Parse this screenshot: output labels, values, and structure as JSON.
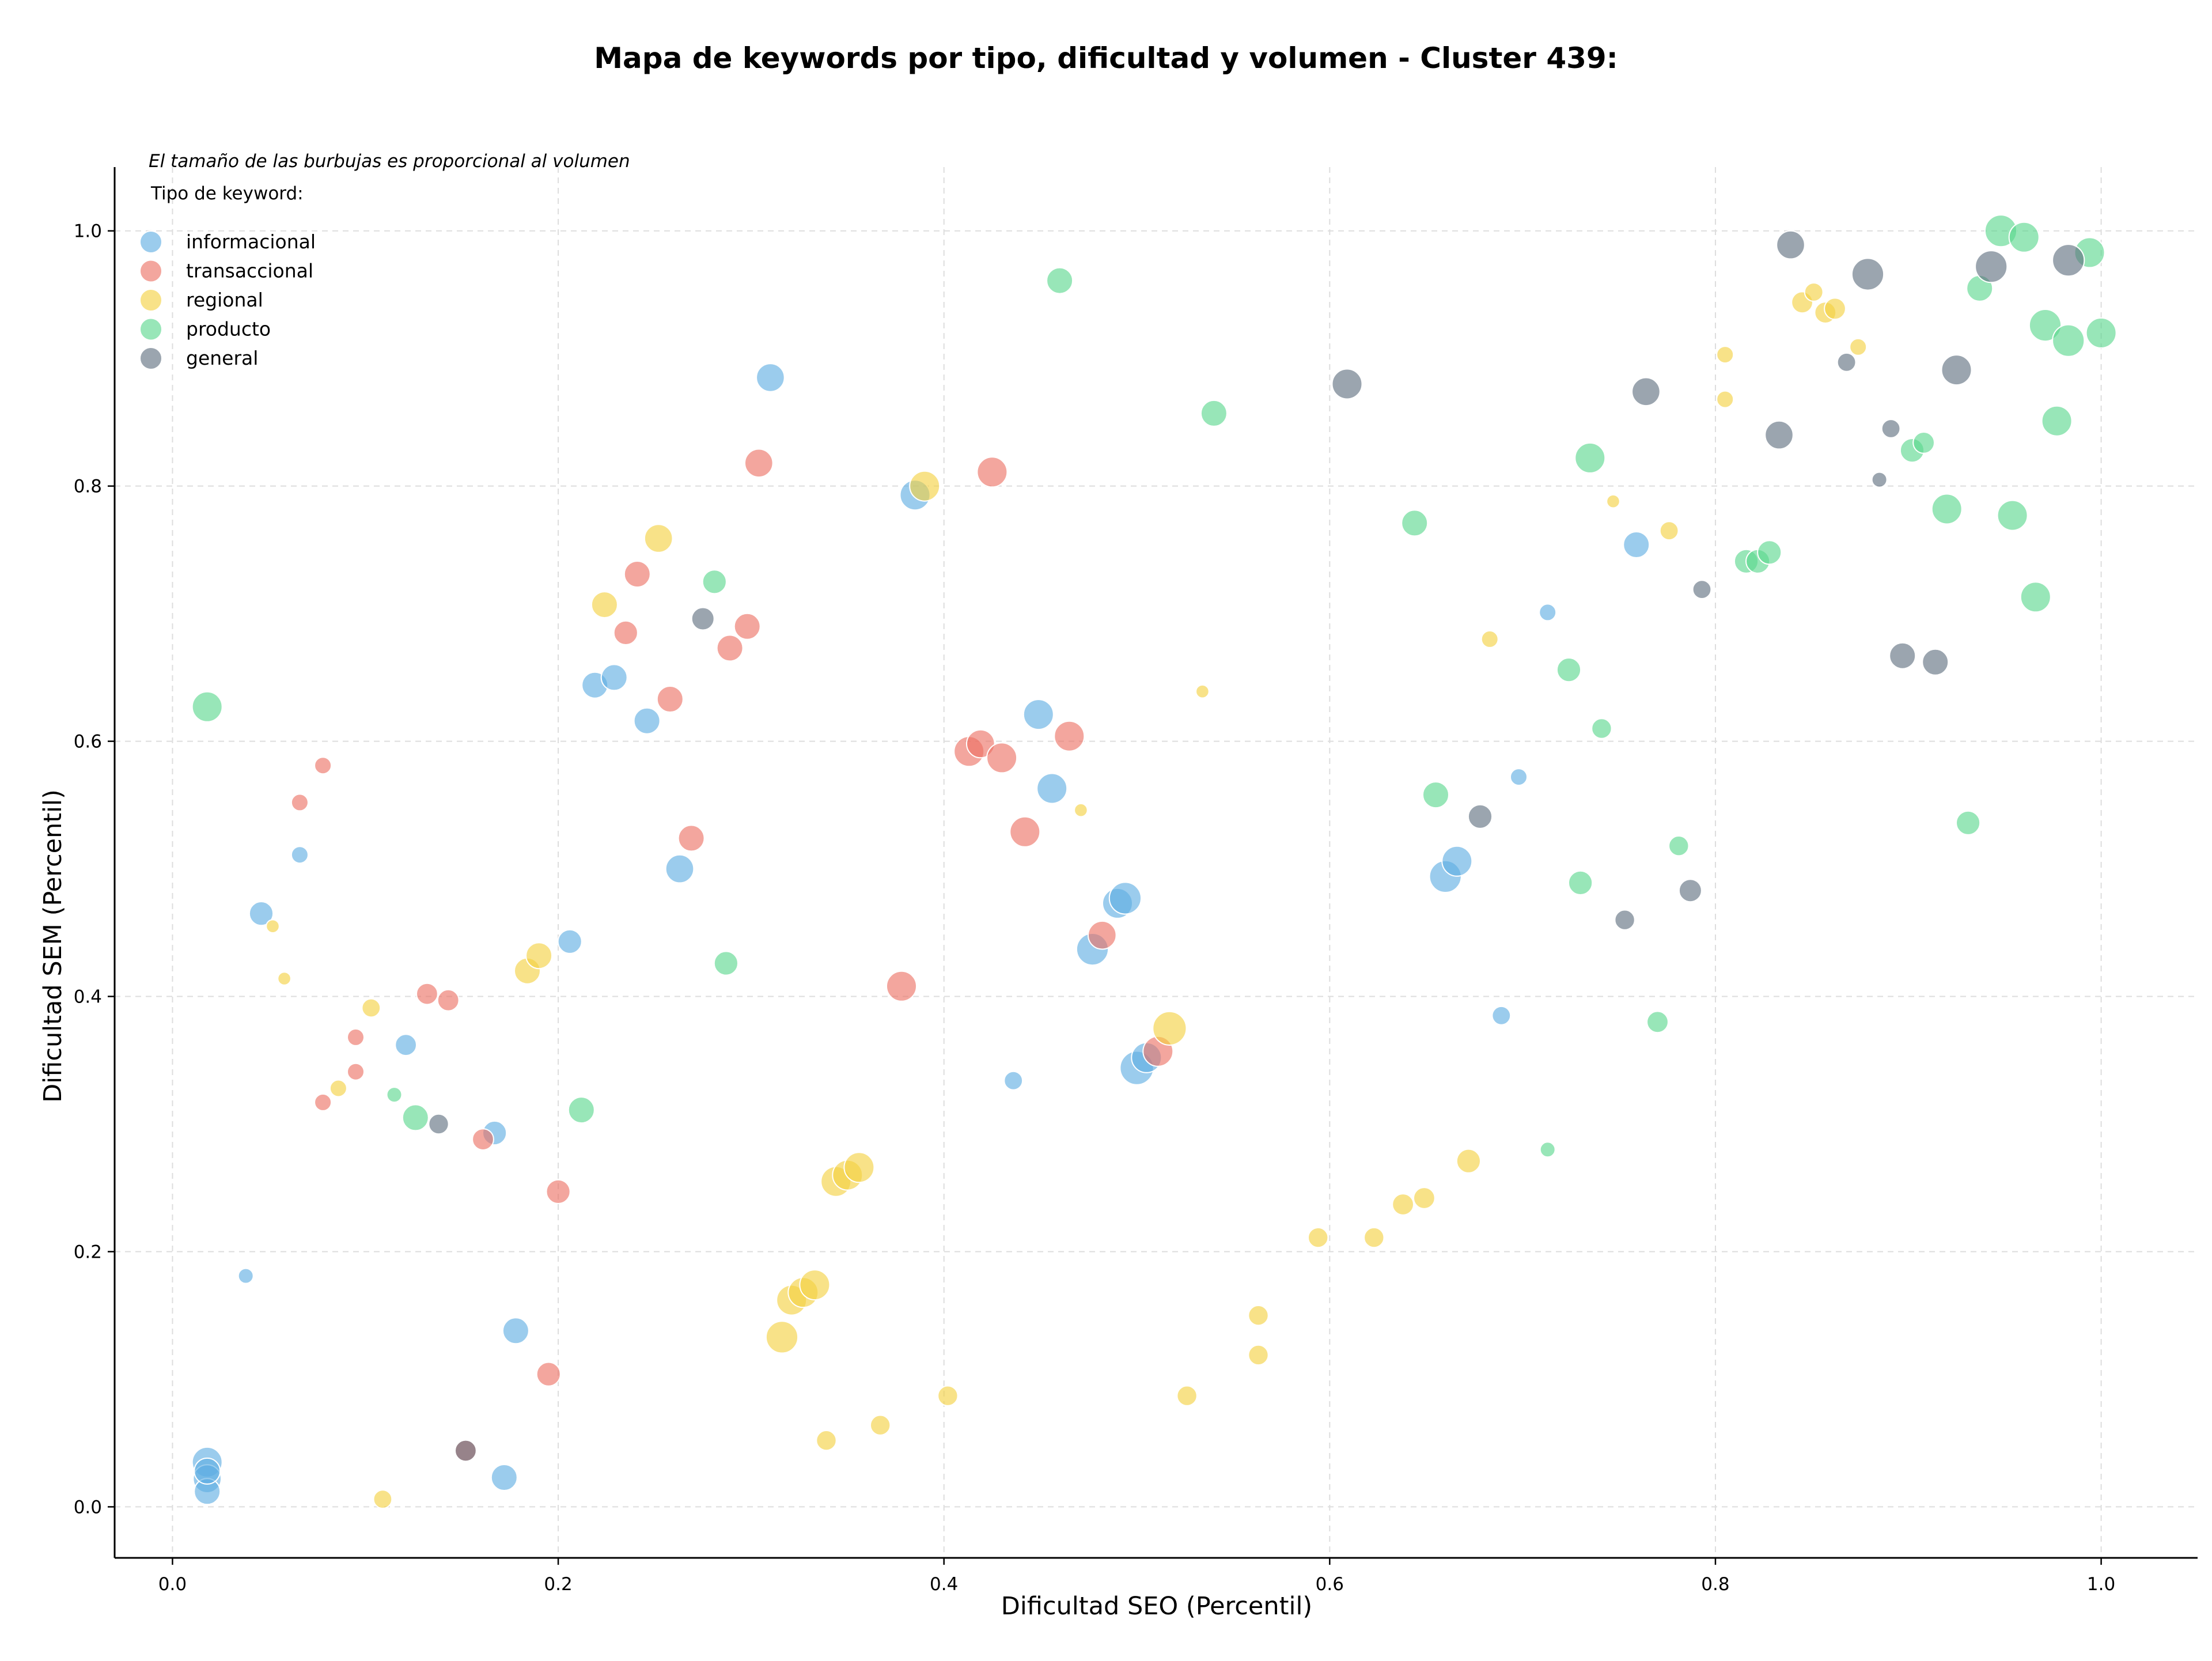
{
  "chart_data": {
    "type": "scatter",
    "title": "Mapa de keywords por tipo, dificultad y volumen - Cluster 439:",
    "xlabel": "Dificultad SEO (Percentil)",
    "ylabel": "Dificultad SEM (Percentil)",
    "xlim": [
      -0.03,
      1.05
    ],
    "ylim": [
      -0.04,
      1.05
    ],
    "x_ticks": [
      "0.0",
      "0.2",
      "0.4",
      "0.6",
      "0.8",
      "1.0"
    ],
    "y_ticks": [
      "0.0",
      "0.2",
      "0.4",
      "0.6",
      "0.8",
      "1.0"
    ],
    "grid": true,
    "note": "El tamaño de las burbujas es proporcional al volumen",
    "legend_title": "Tipo de keyword:",
    "legend_position": "top-left",
    "series": [
      {
        "name": "informacional",
        "color": "#5DADE2",
        "points": [
          {
            "x": 0.018,
            "y": 0.035,
            "size": 8
          },
          {
            "x": 0.018,
            "y": 0.022,
            "size": 7
          },
          {
            "x": 0.018,
            "y": 0.012,
            "size": 6
          },
          {
            "x": 0.018,
            "y": 0.028,
            "size": 6
          },
          {
            "x": 0.038,
            "y": 0.181,
            "size": 2
          },
          {
            "x": 0.046,
            "y": 0.465,
            "size": 5
          },
          {
            "x": 0.066,
            "y": 0.511,
            "size": 2.5
          },
          {
            "x": 0.121,
            "y": 0.362,
            "size": 4
          },
          {
            "x": 0.167,
            "y": 0.293,
            "size": 5
          },
          {
            "x": 0.172,
            "y": 0.023,
            "size": 6
          },
          {
            "x": 0.178,
            "y": 0.138,
            "size": 6
          },
          {
            "x": 0.206,
            "y": 0.443,
            "size": 5
          },
          {
            "x": 0.219,
            "y": 0.644,
            "size": 6
          },
          {
            "x": 0.229,
            "y": 0.65,
            "size": 6
          },
          {
            "x": 0.246,
            "y": 0.616,
            "size": 6
          },
          {
            "x": 0.263,
            "y": 0.5,
            "size": 7
          },
          {
            "x": 0.31,
            "y": 0.885,
            "size": 7
          },
          {
            "x": 0.385,
            "y": 0.793,
            "size": 8
          },
          {
            "x": 0.436,
            "y": 0.334,
            "size": 3
          },
          {
            "x": 0.449,
            "y": 0.621,
            "size": 8
          },
          {
            "x": 0.456,
            "y": 0.563,
            "size": 8
          },
          {
            "x": 0.477,
            "y": 0.437,
            "size": 9
          },
          {
            "x": 0.49,
            "y": 0.473,
            "size": 8
          },
          {
            "x": 0.494,
            "y": 0.477,
            "size": 9
          },
          {
            "x": 0.5,
            "y": 0.344,
            "size": 10
          },
          {
            "x": 0.505,
            "y": 0.352,
            "size": 8
          },
          {
            "x": 0.66,
            "y": 0.494,
            "size": 9
          },
          {
            "x": 0.666,
            "y": 0.506,
            "size": 8
          },
          {
            "x": 0.689,
            "y": 0.385,
            "size": 3
          },
          {
            "x": 0.698,
            "y": 0.572,
            "size": 2.5
          },
          {
            "x": 0.713,
            "y": 0.701,
            "size": 2.5
          },
          {
            "x": 0.759,
            "y": 0.754,
            "size": 6
          }
        ]
      },
      {
        "name": "transaccional",
        "color": "#EC7063",
        "points": [
          {
            "x": 0.078,
            "y": 0.581,
            "size": 2.5
          },
          {
            "x": 0.066,
            "y": 0.552,
            "size": 2.5
          },
          {
            "x": 0.095,
            "y": 0.368,
            "size": 2.5
          },
          {
            "x": 0.095,
            "y": 0.341,
            "size": 2.5
          },
          {
            "x": 0.078,
            "y": 0.317,
            "size": 2.5
          },
          {
            "x": 0.132,
            "y": 0.402,
            "size": 4
          },
          {
            "x": 0.143,
            "y": 0.397,
            "size": 4
          },
          {
            "x": 0.161,
            "y": 0.288,
            "size": 4
          },
          {
            "x": 0.152,
            "y": 0.044,
            "size": 4
          },
          {
            "x": 0.195,
            "y": 0.104,
            "size": 5
          },
          {
            "x": 0.2,
            "y": 0.247,
            "size": 5
          },
          {
            "x": 0.241,
            "y": 0.731,
            "size": 6
          },
          {
            "x": 0.235,
            "y": 0.685,
            "size": 5
          },
          {
            "x": 0.258,
            "y": 0.633,
            "size": 6
          },
          {
            "x": 0.269,
            "y": 0.524,
            "size": 6
          },
          {
            "x": 0.289,
            "y": 0.673,
            "size": 6
          },
          {
            "x": 0.298,
            "y": 0.69,
            "size": 6
          },
          {
            "x": 0.304,
            "y": 0.818,
            "size": 7
          },
          {
            "x": 0.378,
            "y": 0.408,
            "size": 8
          },
          {
            "x": 0.413,
            "y": 0.592,
            "size": 8
          },
          {
            "x": 0.419,
            "y": 0.598,
            "size": 7
          },
          {
            "x": 0.425,
            "y": 0.811,
            "size": 8
          },
          {
            "x": 0.43,
            "y": 0.587,
            "size": 8
          },
          {
            "x": 0.442,
            "y": 0.529,
            "size": 8
          },
          {
            "x": 0.465,
            "y": 0.604,
            "size": 8
          },
          {
            "x": 0.482,
            "y": 0.448,
            "size": 7
          },
          {
            "x": 0.511,
            "y": 0.357,
            "size": 8
          }
        ]
      },
      {
        "name": "regional",
        "color": "#F4D03F",
        "points": [
          {
            "x": 0.052,
            "y": 0.455,
            "size": 1.5
          },
          {
            "x": 0.058,
            "y": 0.414,
            "size": 1.5
          },
          {
            "x": 0.103,
            "y": 0.391,
            "size": 3
          },
          {
            "x": 0.086,
            "y": 0.328,
            "size": 2.5
          },
          {
            "x": 0.109,
            "y": 0.006,
            "size": 3
          },
          {
            "x": 0.184,
            "y": 0.42,
            "size": 6
          },
          {
            "x": 0.19,
            "y": 0.432,
            "size": 6
          },
          {
            "x": 0.224,
            "y": 0.707,
            "size": 6
          },
          {
            "x": 0.252,
            "y": 0.759,
            "size": 7
          },
          {
            "x": 0.316,
            "y": 0.133,
            "size": 9
          },
          {
            "x": 0.321,
            "y": 0.162,
            "size": 8
          },
          {
            "x": 0.327,
            "y": 0.168,
            "size": 8
          },
          {
            "x": 0.333,
            "y": 0.174,
            "size": 8
          },
          {
            "x": 0.339,
            "y": 0.052,
            "size": 3.5
          },
          {
            "x": 0.344,
            "y": 0.255,
            "size": 8
          },
          {
            "x": 0.35,
            "y": 0.26,
            "size": 8
          },
          {
            "x": 0.356,
            "y": 0.266,
            "size": 8
          },
          {
            "x": 0.367,
            "y": 0.064,
            "size": 3.5
          },
          {
            "x": 0.39,
            "y": 0.8,
            "size": 8
          },
          {
            "x": 0.402,
            "y": 0.087,
            "size": 3.5
          },
          {
            "x": 0.471,
            "y": 0.546,
            "size": 1.5
          },
          {
            "x": 0.517,
            "y": 0.375,
            "size": 10
          },
          {
            "x": 0.526,
            "y": 0.087,
            "size": 3.5
          },
          {
            "x": 0.534,
            "y": 0.639,
            "size": 1.5
          },
          {
            "x": 0.563,
            "y": 0.15,
            "size": 3.5
          },
          {
            "x": 0.563,
            "y": 0.119,
            "size": 3.5
          },
          {
            "x": 0.594,
            "y": 0.211,
            "size": 3.5
          },
          {
            "x": 0.623,
            "y": 0.211,
            "size": 3.5
          },
          {
            "x": 0.638,
            "y": 0.237,
            "size": 4
          },
          {
            "x": 0.649,
            "y": 0.242,
            "size": 4
          },
          {
            "x": 0.672,
            "y": 0.271,
            "size": 5
          },
          {
            "x": 0.683,
            "y": 0.68,
            "size": 2.5
          },
          {
            "x": 0.747,
            "y": 0.788,
            "size": 1.5
          },
          {
            "x": 0.776,
            "y": 0.765,
            "size": 3
          },
          {
            "x": 0.805,
            "y": 0.903,
            "size": 2.5
          },
          {
            "x": 0.805,
            "y": 0.868,
            "size": 2.5
          },
          {
            "x": 0.845,
            "y": 0.944,
            "size": 4
          },
          {
            "x": 0.851,
            "y": 0.952,
            "size": 3
          },
          {
            "x": 0.857,
            "y": 0.936,
            "size": 4
          },
          {
            "x": 0.862,
            "y": 0.939,
            "size": 4
          },
          {
            "x": 0.874,
            "y": 0.909,
            "size": 2.5
          }
        ]
      },
      {
        "name": "producto",
        "color": "#58D68D",
        "points": [
          {
            "x": 0.018,
            "y": 0.627,
            "size": 8
          },
          {
            "x": 0.115,
            "y": 0.323,
            "size": 2
          },
          {
            "x": 0.126,
            "y": 0.305,
            "size": 6
          },
          {
            "x": 0.212,
            "y": 0.311,
            "size": 6
          },
          {
            "x": 0.281,
            "y": 0.725,
            "size": 5
          },
          {
            "x": 0.287,
            "y": 0.426,
            "size": 5
          },
          {
            "x": 0.46,
            "y": 0.961,
            "size": 6
          },
          {
            "x": 0.54,
            "y": 0.857,
            "size": 6
          },
          {
            "x": 0.644,
            "y": 0.771,
            "size": 6
          },
          {
            "x": 0.655,
            "y": 0.558,
            "size": 6
          },
          {
            "x": 0.713,
            "y": 0.28,
            "size": 2
          },
          {
            "x": 0.724,
            "y": 0.656,
            "size": 5
          },
          {
            "x": 0.73,
            "y": 0.489,
            "size": 5
          },
          {
            "x": 0.735,
            "y": 0.822,
            "size": 8
          },
          {
            "x": 0.741,
            "y": 0.61,
            "size": 3.5
          },
          {
            "x": 0.77,
            "y": 0.38,
            "size": 4
          },
          {
            "x": 0.781,
            "y": 0.518,
            "size": 3.5
          },
          {
            "x": 0.816,
            "y": 0.741,
            "size": 5
          },
          {
            "x": 0.822,
            "y": 0.741,
            "size": 5
          },
          {
            "x": 0.828,
            "y": 0.748,
            "size": 5
          },
          {
            "x": 0.902,
            "y": 0.828,
            "size": 5
          },
          {
            "x": 0.908,
            "y": 0.834,
            "size": 4
          },
          {
            "x": 0.92,
            "y": 0.782,
            "size": 8
          },
          {
            "x": 0.931,
            "y": 0.536,
            "size": 5
          },
          {
            "x": 0.937,
            "y": 0.955,
            "size": 6
          },
          {
            "x": 0.948,
            "y": 1.0,
            "size": 9
          },
          {
            "x": 0.954,
            "y": 0.777,
            "size": 8
          },
          {
            "x": 0.96,
            "y": 0.995,
            "size": 8
          },
          {
            "x": 0.966,
            "y": 0.713,
            "size": 8
          },
          {
            "x": 0.971,
            "y": 0.926,
            "size": 9
          },
          {
            "x": 0.977,
            "y": 0.851,
            "size": 8
          },
          {
            "x": 0.983,
            "y": 0.914,
            "size": 9
          },
          {
            "x": 0.994,
            "y": 0.983,
            "size": 8
          },
          {
            "x": 1.0,
            "y": 0.92,
            "size": 8
          }
        ]
      },
      {
        "name": "general",
        "color": "#5D6D7E",
        "points": [
          {
            "x": 0.138,
            "y": 0.3,
            "size": 3.5
          },
          {
            "x": 0.152,
            "y": 0.044,
            "size": 4
          },
          {
            "x": 0.275,
            "y": 0.696,
            "size": 4.5
          },
          {
            "x": 0.609,
            "y": 0.88,
            "size": 8
          },
          {
            "x": 0.678,
            "y": 0.541,
            "size": 5
          },
          {
            "x": 0.753,
            "y": 0.46,
            "size": 3.5
          },
          {
            "x": 0.764,
            "y": 0.874,
            "size": 7
          },
          {
            "x": 0.787,
            "y": 0.483,
            "size": 4.5
          },
          {
            "x": 0.793,
            "y": 0.719,
            "size": 3
          },
          {
            "x": 0.833,
            "y": 0.84,
            "size": 7
          },
          {
            "x": 0.839,
            "y": 0.989,
            "size": 7
          },
          {
            "x": 0.868,
            "y": 0.897,
            "size": 3
          },
          {
            "x": 0.879,
            "y": 0.966,
            "size": 9
          },
          {
            "x": 0.885,
            "y": 0.805,
            "size": 2
          },
          {
            "x": 0.891,
            "y": 0.845,
            "size": 3
          },
          {
            "x": 0.897,
            "y": 0.667,
            "size": 6
          },
          {
            "x": 0.914,
            "y": 0.662,
            "size": 6
          },
          {
            "x": 0.925,
            "y": 0.891,
            "size": 8
          },
          {
            "x": 0.943,
            "y": 0.972,
            "size": 9
          },
          {
            "x": 0.983,
            "y": 0.977,
            "size": 9
          }
        ]
      }
    ]
  }
}
